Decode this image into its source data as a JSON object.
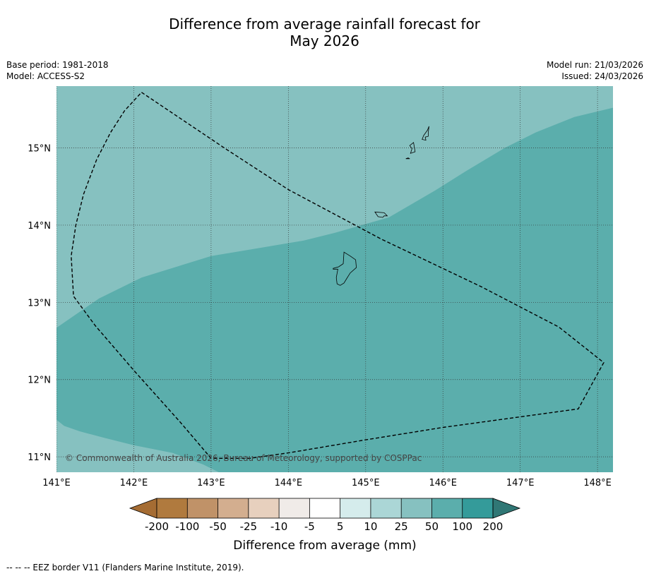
{
  "title": {
    "line1": "Difference from average rainfall forecast for",
    "line2": "May 2026"
  },
  "meta_left": {
    "base_period": "Base period: 1981-2018",
    "model": "Model: ACCESS-S2"
  },
  "meta_right": {
    "model_run": "Model run: 21/03/2026",
    "issued": "Issued: 24/03/2026"
  },
  "map": {
    "lon_range": [
      141.0,
      148.2
    ],
    "lat_range": [
      10.8,
      15.8
    ],
    "lon_ticks": [
      141,
      142,
      143,
      144,
      145,
      146,
      147,
      148
    ],
    "lon_tick_labels": [
      "141°E",
      "142°E",
      "143°E",
      "144°E",
      "145°E",
      "146°E",
      "147°E",
      "148°E"
    ],
    "lat_ticks": [
      11,
      12,
      13,
      14,
      15
    ],
    "lat_tick_labels": [
      "11°N",
      "12°N",
      "13°N",
      "14°N",
      "15°N"
    ],
    "copyright": "© Commonwealth of Australia 2026, Bureau of Meteorology, supported by COSPPac",
    "regions": [
      {
        "category": "25 to 50",
        "color": "#86c1c0",
        "polygon": [
          [
            141.0,
            15.8
          ],
          [
            148.2,
            15.8
          ],
          [
            148.2,
            10.8
          ],
          [
            141.0,
            10.8
          ]
        ]
      },
      {
        "category": "50 to 100",
        "color": "#5baeac",
        "polygon": [
          [
            141.0,
            12.67
          ],
          [
            141.55,
            13.05
          ],
          [
            142.1,
            13.32
          ],
          [
            143.0,
            13.6
          ],
          [
            144.2,
            13.8
          ],
          [
            144.6,
            13.9
          ],
          [
            145.3,
            14.1
          ],
          [
            145.9,
            14.45
          ],
          [
            146.3,
            14.7
          ],
          [
            146.8,
            15.0
          ],
          [
            147.2,
            15.2
          ],
          [
            147.7,
            15.4
          ],
          [
            148.2,
            15.52
          ],
          [
            148.2,
            10.8
          ],
          [
            143.1,
            10.8
          ],
          [
            142.9,
            10.9
          ],
          [
            142.5,
            11.05
          ],
          [
            142.0,
            11.15
          ],
          [
            141.6,
            11.25
          ],
          [
            141.3,
            11.33
          ],
          [
            141.1,
            11.4
          ],
          [
            141.0,
            11.48
          ]
        ]
      }
    ],
    "eez_border": [
      [
        142.1,
        15.72
      ],
      [
        143.2,
        14.98
      ],
      [
        144.0,
        14.46
      ],
      [
        145.2,
        13.82
      ],
      [
        146.5,
        13.2
      ],
      [
        147.5,
        12.68
      ],
      [
        148.08,
        12.22
      ],
      [
        147.75,
        11.62
      ],
      [
        146.0,
        11.38
      ],
      [
        145.0,
        11.22
      ],
      [
        144.0,
        11.05
      ],
      [
        143.5,
        10.98
      ],
      [
        143.0,
        10.98
      ],
      [
        142.6,
        11.45
      ],
      [
        142.0,
        12.12
      ],
      [
        141.5,
        12.7
      ],
      [
        141.22,
        13.08
      ],
      [
        141.19,
        13.6
      ],
      [
        141.25,
        14.0
      ],
      [
        141.35,
        14.4
      ],
      [
        141.52,
        14.85
      ],
      [
        141.7,
        15.2
      ],
      [
        141.88,
        15.48
      ],
      [
        142.1,
        15.72
      ]
    ],
    "islands": [
      {
        "name": "guam",
        "polygon": [
          [
            144.72,
            13.65
          ],
          [
            144.8,
            13.6
          ],
          [
            144.87,
            13.55
          ],
          [
            144.88,
            13.45
          ],
          [
            144.8,
            13.38
          ],
          [
            144.75,
            13.3
          ],
          [
            144.72,
            13.25
          ],
          [
            144.67,
            13.22
          ],
          [
            144.63,
            13.24
          ],
          [
            144.62,
            13.32
          ],
          [
            144.64,
            13.43
          ],
          [
            144.58,
            13.43
          ],
          [
            144.58,
            13.44
          ],
          [
            144.65,
            13.46
          ],
          [
            144.71,
            13.5
          ],
          [
            144.72,
            13.65
          ]
        ]
      },
      {
        "name": "rota",
        "polygon": [
          [
            145.12,
            14.17
          ],
          [
            145.24,
            14.16
          ],
          [
            145.28,
            14.12
          ],
          [
            145.24,
            14.12
          ],
          [
            145.22,
            14.1
          ],
          [
            145.16,
            14.11
          ],
          [
            145.12,
            14.17
          ]
        ]
      },
      {
        "name": "tinian",
        "polygon": [
          [
            145.62,
            15.07
          ],
          [
            145.63,
            15.01
          ],
          [
            145.64,
            14.95
          ],
          [
            145.58,
            14.93
          ],
          [
            145.6,
            14.99
          ],
          [
            145.57,
            15.03
          ],
          [
            145.62,
            15.07
          ]
        ]
      },
      {
        "name": "saipan",
        "polygon": [
          [
            145.82,
            15.28
          ],
          [
            145.8,
            15.23
          ],
          [
            145.75,
            15.16
          ],
          [
            145.73,
            15.11
          ],
          [
            145.78,
            15.1
          ],
          [
            145.77,
            15.14
          ],
          [
            145.81,
            15.15
          ],
          [
            145.81,
            15.2
          ],
          [
            145.82,
            15.28
          ]
        ]
      },
      {
        "name": "aguijan",
        "polygon": [
          [
            145.52,
            14.86
          ],
          [
            145.57,
            14.86
          ],
          [
            145.55,
            14.87
          ]
        ]
      }
    ]
  },
  "colorbar": {
    "tick_labels": [
      "-200",
      "-100",
      "-50",
      "-25",
      "-10",
      "-5",
      "5",
      "10",
      "25",
      "50",
      "100",
      "200"
    ],
    "colors": [
      "#a56c33",
      "#b07a3e",
      "#c09268",
      "#d3ae8f",
      "#e7d0be",
      "#f0ebe8",
      "#ffffff",
      "#d5ecec",
      "#abd6d6",
      "#86c1c0",
      "#5baeac",
      "#349b9a",
      "#307775"
    ],
    "label": "Difference from average (mm)"
  },
  "footer": "--  --  -- EEZ border V11 (Flanders Marine Institute, 2019)."
}
